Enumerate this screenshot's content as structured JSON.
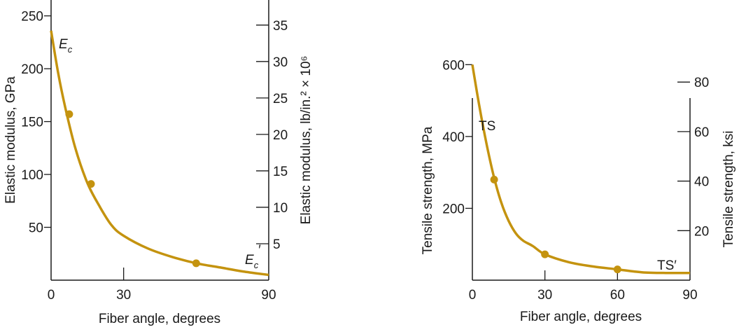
{
  "chart_data": [
    {
      "type": "line",
      "xlabel": "Fiber angle, degrees",
      "ylabel": "Elastic modulus, GPa",
      "ylabel_right": "Elastic modulus, lb/in.² × 10⁶",
      "xlim": [
        0,
        90
      ],
      "ylim": [
        0,
        265
      ],
      "ylim_right_max": 38.44,
      "x_ticks": [
        0,
        30,
        90
      ],
      "x_ticks_minor": [
        30
      ],
      "y_ticks": [
        50,
        100,
        150,
        200,
        250
      ],
      "y_ticks_right": [
        5,
        10,
        15,
        20,
        25,
        30,
        35
      ],
      "curve": {
        "x": [
          0,
          3,
          6,
          10,
          15,
          20,
          25,
          30,
          40,
          50,
          60,
          70,
          80,
          90
        ],
        "y": [
          236,
          195,
          162,
          125,
          92,
          70,
          52,
          42,
          30,
          22,
          16,
          12,
          8,
          5
        ]
      },
      "markers": {
        "x": [
          7.5,
          16.5,
          60
        ],
        "y": [
          157,
          91,
          16
        ]
      },
      "label_start": {
        "text": "E",
        "sub": "c"
      },
      "label_end": {
        "text": "E",
        "sub": "c",
        "prime": "′"
      },
      "grid": false
    },
    {
      "type": "line",
      "xlabel": "Fiber angle, degrees",
      "ylabel": "Tensile strength, MPa",
      "ylabel_right": "Tensile strength, ksi",
      "xlim": [
        0,
        90
      ],
      "ylim": [
        0,
        780
      ],
      "ylim_right_max": 113.14,
      "x_ticks": [
        0,
        30,
        60,
        90
      ],
      "y_ticks": [
        200,
        400,
        600
      ],
      "y_ticks_right": [
        20,
        40,
        60,
        80
      ],
      "curve": {
        "x": [
          0,
          3,
          6,
          9,
          12,
          15,
          18,
          21,
          25,
          30,
          40,
          50,
          60,
          70,
          80,
          90
        ],
        "y": [
          600,
          480,
          375,
          285,
          215,
          165,
          130,
          110,
          95,
          72,
          50,
          38,
          30,
          22,
          20,
          20
        ]
      },
      "markers": {
        "x": [
          9,
          30,
          60
        ],
        "y": [
          280,
          72,
          30
        ]
      },
      "label_start": {
        "text": "TS"
      },
      "label_end": {
        "text": "TS′"
      },
      "grid": false
    }
  ]
}
